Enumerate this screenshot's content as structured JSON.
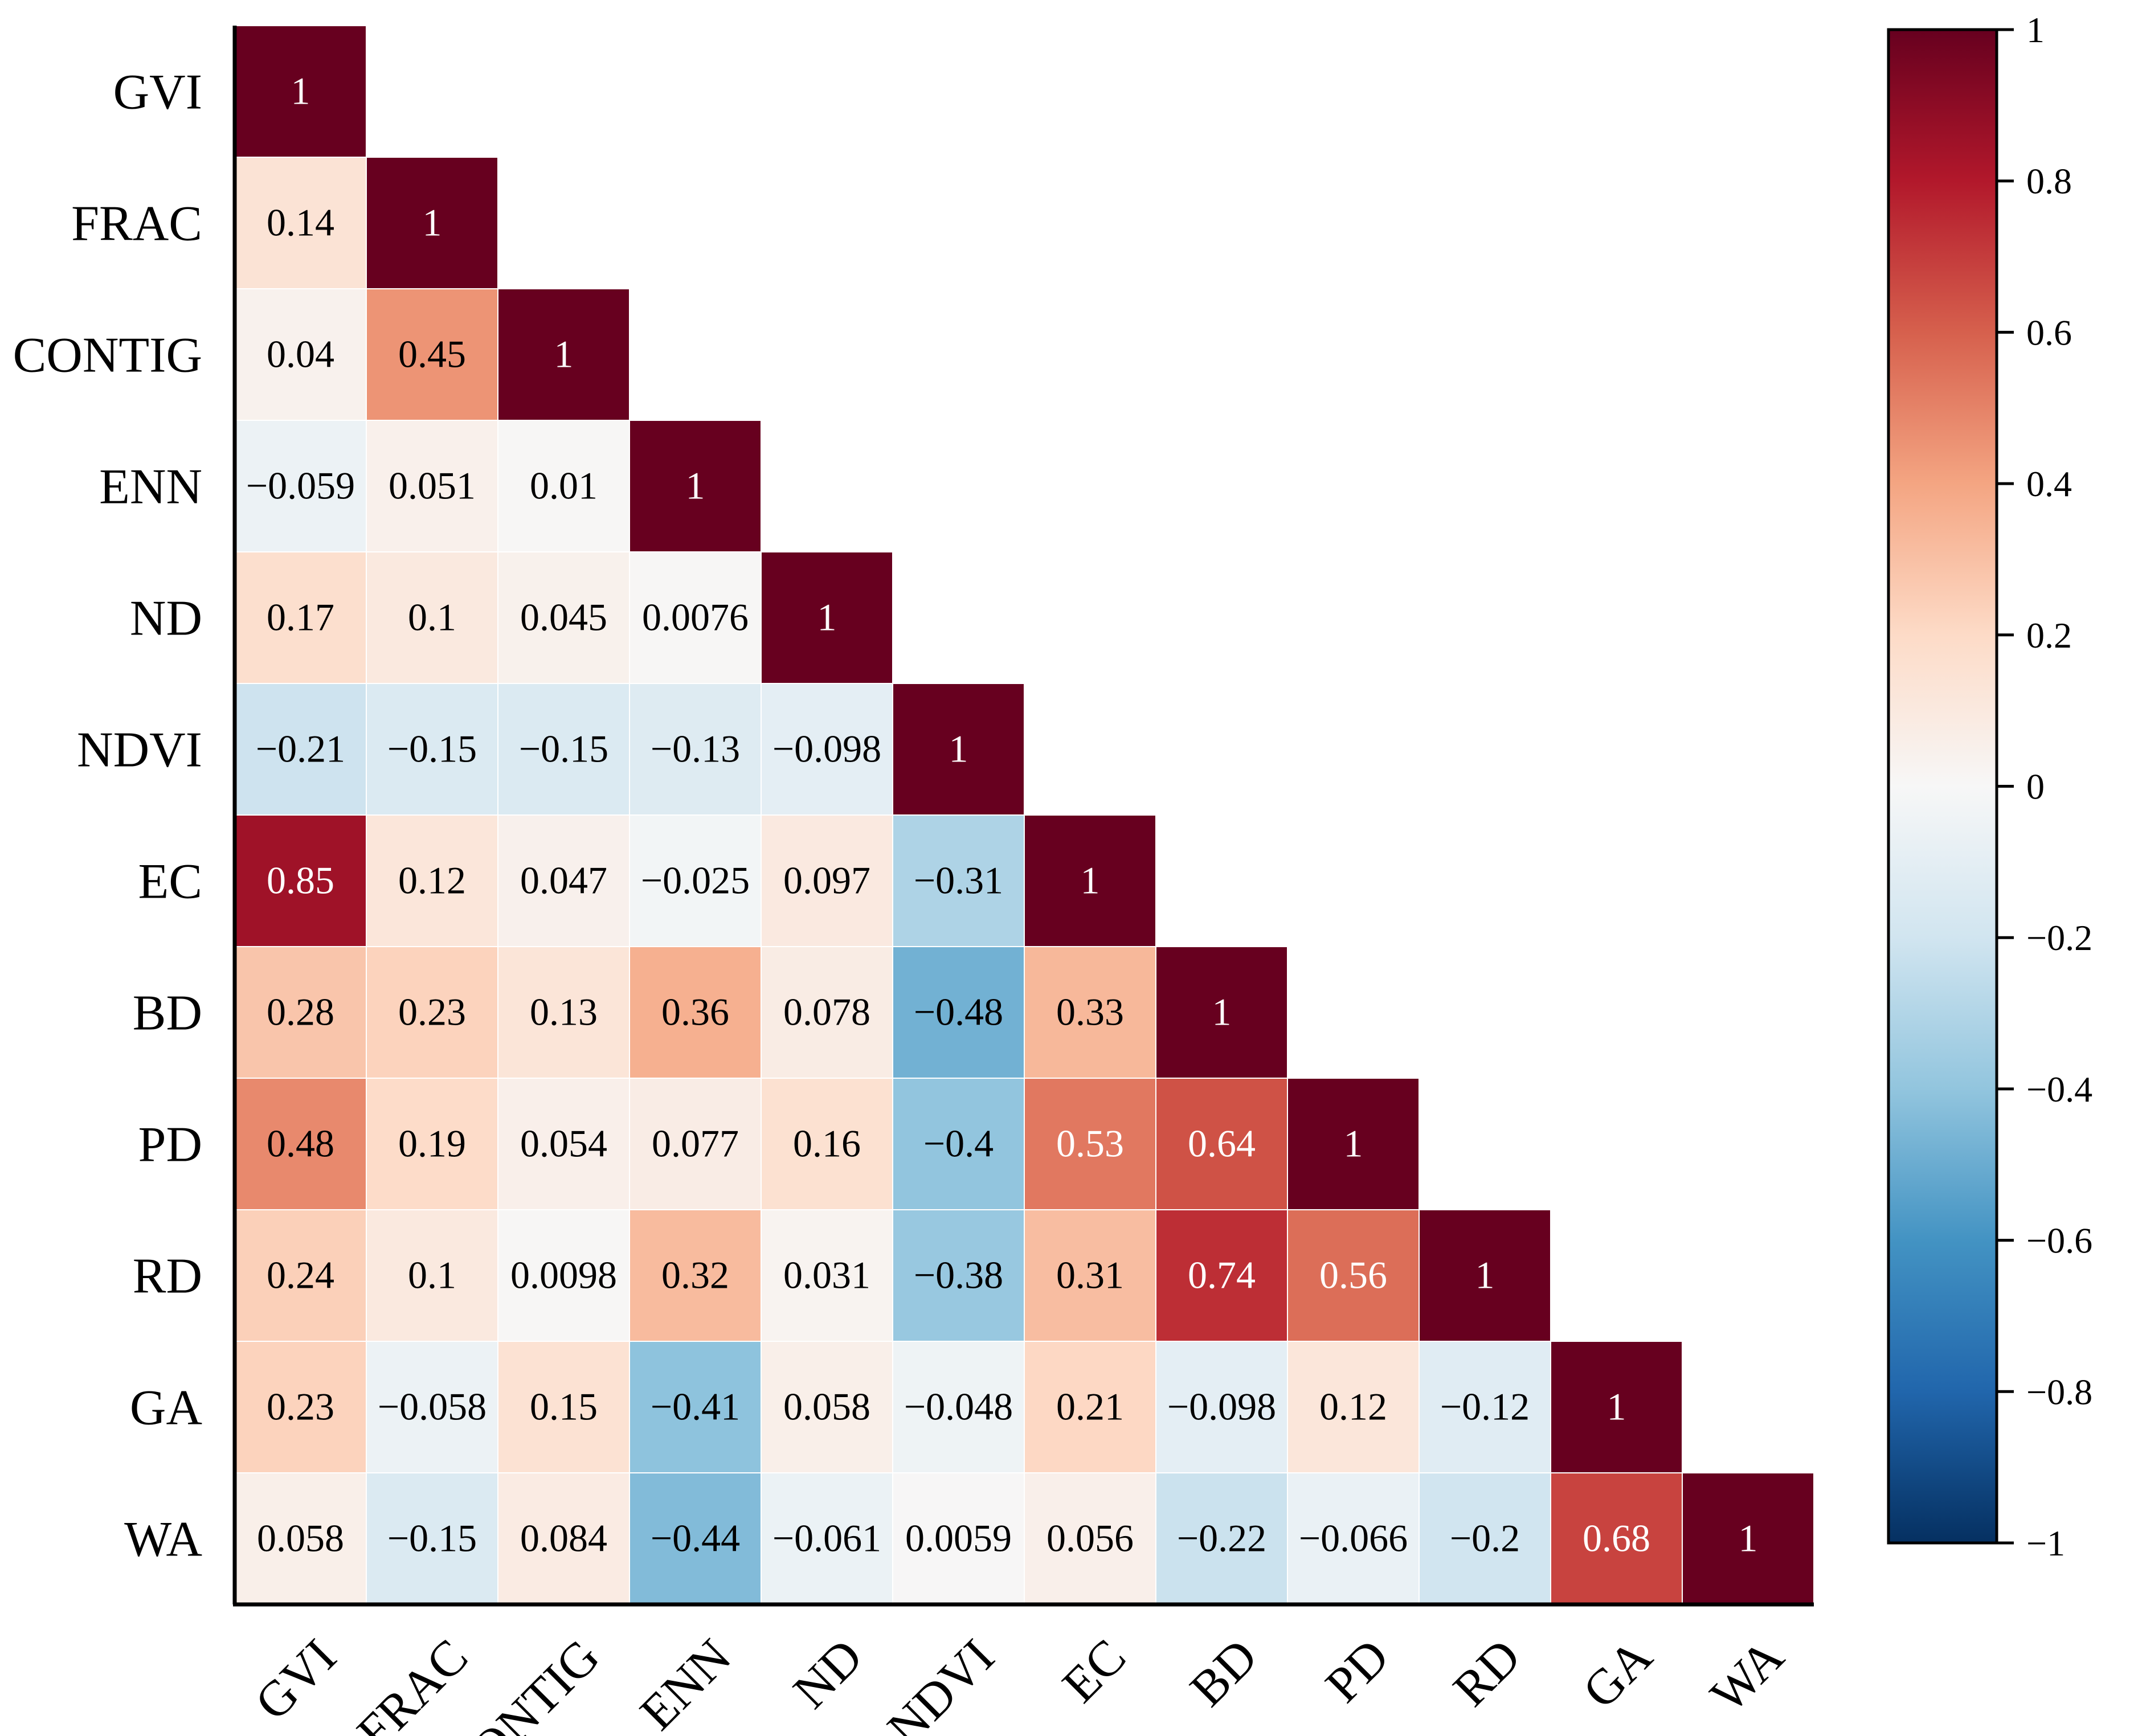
{
  "chart_data": {
    "type": "heatmap",
    "layout": "lower-triangle",
    "title": "",
    "xlabel": "",
    "ylabel": "",
    "variables": [
      "GVI",
      "FRAC",
      "CONTIG",
      "ENN",
      "ND",
      "NDVI",
      "EC",
      "BD",
      "PD",
      "RD",
      "GA",
      "WA"
    ],
    "values": [
      [
        1
      ],
      [
        0.14,
        1
      ],
      [
        0.04,
        0.45,
        1
      ],
      [
        -0.059,
        0.051,
        0.01,
        1
      ],
      [
        0.17,
        0.1,
        0.045,
        0.0076,
        1
      ],
      [
        -0.21,
        -0.15,
        -0.15,
        -0.13,
        -0.098,
        1
      ],
      [
        0.85,
        0.12,
        0.047,
        -0.025,
        0.097,
        -0.31,
        1
      ],
      [
        0.28,
        0.23,
        0.13,
        0.36,
        0.078,
        -0.48,
        0.33,
        1
      ],
      [
        0.48,
        0.19,
        0.054,
        0.077,
        0.16,
        -0.4,
        0.53,
        0.64,
        1
      ],
      [
        0.24,
        0.1,
        0.0098,
        0.32,
        0.031,
        -0.38,
        0.31,
        0.74,
        0.56,
        1
      ],
      [
        0.23,
        -0.058,
        0.15,
        -0.41,
        0.058,
        -0.048,
        0.21,
        -0.098,
        0.12,
        -0.12,
        1
      ],
      [
        0.058,
        -0.15,
        0.084,
        -0.44,
        -0.061,
        0.0059,
        0.056,
        -0.22,
        -0.066,
        -0.2,
        0.68,
        1
      ]
    ],
    "labels": [
      [
        "1"
      ],
      [
        "0.14",
        "1"
      ],
      [
        "0.04",
        "0.45",
        "1"
      ],
      [
        "−0.059",
        "0.051",
        "0.01",
        "1"
      ],
      [
        "0.17",
        "0.1",
        "0.045",
        "0.0076",
        "1"
      ],
      [
        "−0.21",
        "−0.15",
        "−0.15",
        "−0.13",
        "−0.098",
        "1"
      ],
      [
        "0.85",
        "0.12",
        "0.047",
        "−0.025",
        "0.097",
        "−0.31",
        "1"
      ],
      [
        "0.28",
        "0.23",
        "0.13",
        "0.36",
        "0.078",
        "−0.48",
        "0.33",
        "1"
      ],
      [
        "0.48",
        "0.19",
        "0.054",
        "0.077",
        "0.16",
        "−0.4",
        "0.53",
        "0.64",
        "1"
      ],
      [
        "0.24",
        "0.1",
        "0.0098",
        "0.32",
        "0.031",
        "−0.38",
        "0.31",
        "0.74",
        "0.56",
        "1"
      ],
      [
        "0.23",
        "−0.058",
        "0.15",
        "−0.41",
        "0.058",
        "−0.048",
        "0.21",
        "−0.098",
        "0.12",
        "−0.12",
        "1"
      ],
      [
        "0.058",
        "−0.15",
        "0.084",
        "−0.44",
        "−0.061",
        "0.0059",
        "0.056",
        "−0.22",
        "−0.066",
        "−0.2",
        "0.68",
        "1"
      ]
    ],
    "colorbar": {
      "range": [
        -1,
        1
      ],
      "ticks": [
        1,
        0.8,
        0.6,
        0.4,
        0.2,
        0,
        -0.2,
        -0.4,
        -0.6,
        -0.8,
        -1
      ],
      "tick_labels": [
        "1",
        "0.8",
        "0.6",
        "0.4",
        "0.2",
        "0",
        "−0.2",
        "−0.4",
        "−0.6",
        "−0.8",
        "−1"
      ],
      "colormap": "RdBu_r",
      "stops": [
        "#053061",
        "#2166ac",
        "#4393c3",
        "#92c5de",
        "#d1e5f0",
        "#f7f7f7",
        "#fddbc7",
        "#f4a582",
        "#d6604d",
        "#b2182b",
        "#67001f"
      ]
    },
    "grid": true
  }
}
